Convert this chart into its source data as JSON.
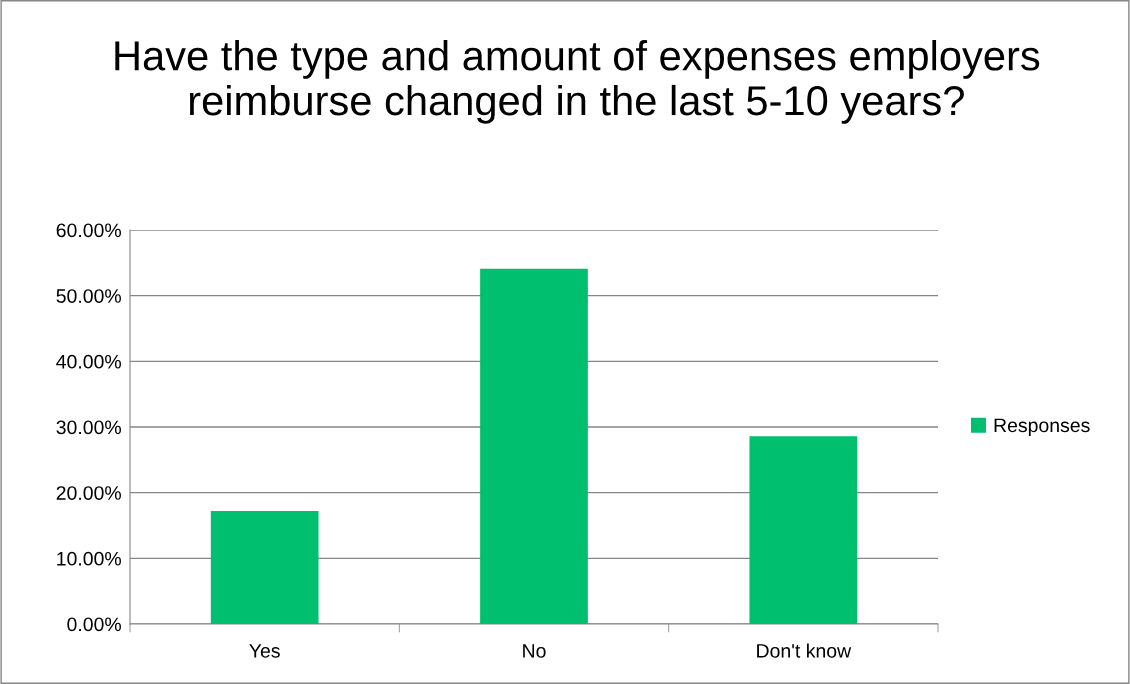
{
  "chart_data": {
    "type": "bar",
    "title": "Have the type and amount of expenses employers reimburse changed in the last 5-10 years?",
    "categories": [
      "Yes",
      "No",
      "Don't know"
    ],
    "series": [
      {
        "name": "Responses",
        "color": "#00bf6f",
        "values": [
          17.2,
          54.1,
          28.6
        ]
      }
    ],
    "ylim": [
      0,
      60
    ],
    "yticks": [
      {
        "value": 0,
        "label": "0.00%"
      },
      {
        "value": 10,
        "label": "10.00%"
      },
      {
        "value": 20,
        "label": "20.00%"
      },
      {
        "value": 30,
        "label": "30.00%"
      },
      {
        "value": 40,
        "label": "40.00%"
      },
      {
        "value": 50,
        "label": "50.00%"
      },
      {
        "value": 60,
        "label": "60.00%"
      }
    ],
    "grid": "y",
    "legend": "right"
  }
}
